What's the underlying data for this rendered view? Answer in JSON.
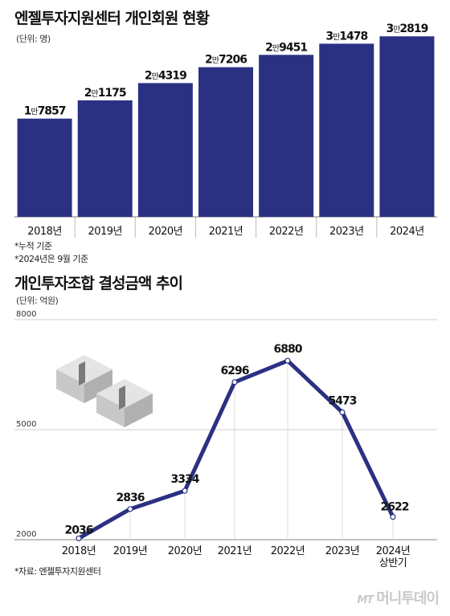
{
  "chart1": {
    "title": "엔젤투자지원센터 개인회원 현황",
    "unit": "(단위: 명)",
    "notes": [
      "*누적 기준",
      "*2024년은 9월 기준"
    ],
    "bar_color": "#2a3183"
  },
  "chart2": {
    "title": "개인투자조합 결성금액 추이",
    "unit": "(단위: 억원)",
    "source": "*자료: 엔젤투자지원센터",
    "line_color": "#2a3183"
  },
  "logo": {
    "mt": "MT",
    "name": "머니투데이"
  },
  "chart_data": [
    {
      "type": "bar",
      "title": "엔젤투자지원센터 개인회원 현황",
      "unit": "(단위: 명)",
      "categories": [
        "2018년",
        "2019년",
        "2020년",
        "2021년",
        "2022년",
        "2023년",
        "2024년"
      ],
      "values": [
        17857,
        21175,
        24319,
        27206,
        29451,
        31478,
        32819
      ],
      "labels": [
        {
          "head": "1",
          "man": "만",
          "tail": "7857"
        },
        {
          "head": "2",
          "man": "만",
          "tail": "1175"
        },
        {
          "head": "2",
          "man": "만",
          "tail": "4319"
        },
        {
          "head": "2",
          "man": "만",
          "tail": "7206"
        },
        {
          "head": "2",
          "man": "만",
          "tail": "9451"
        },
        {
          "head": "3",
          "man": "만",
          "tail": "1478"
        },
        {
          "head": "3",
          "man": "만",
          "tail": "2819"
        }
      ],
      "ylim": [
        0,
        33000
      ]
    },
    {
      "type": "line",
      "title": "개인투자조합 결성금액 추이",
      "unit": "(단위: 억원)",
      "categories": [
        "2018년",
        "2019년",
        "2020년",
        "2021년",
        "2022년",
        "2023년",
        "2024년 상반기"
      ],
      "values": [
        2036,
        2836,
        3334,
        6296,
        6880,
        5473,
        2622
      ],
      "yticks": [
        2000,
        5000,
        8000
      ],
      "ylim": [
        2000,
        8000
      ]
    }
  ]
}
